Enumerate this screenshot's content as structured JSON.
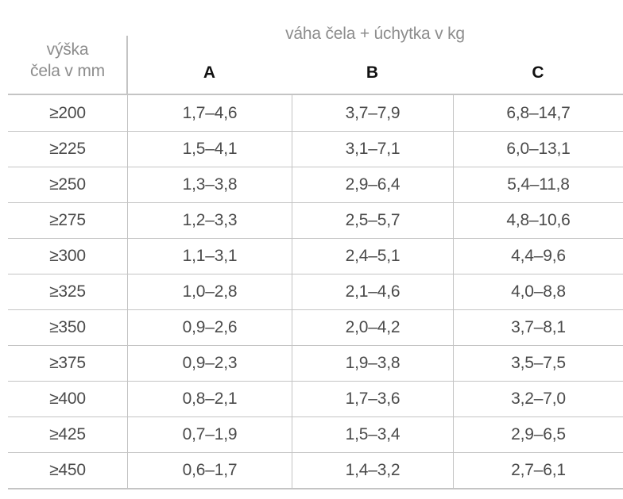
{
  "table": {
    "group_header": "váha čela + úchytka v kg",
    "corner_header": {
      "line1": "výška",
      "line2": "čela v mm"
    },
    "column_headers": [
      "A",
      "B",
      "C"
    ],
    "rows": [
      {
        "height": "≥200",
        "a": "1,7–4,6",
        "b": "3,7–7,9",
        "c": "6,8–14,7"
      },
      {
        "height": "≥225",
        "a": "1,5–4,1",
        "b": "3,1–7,1",
        "c": "6,0–13,1"
      },
      {
        "height": "≥250",
        "a": "1,3–3,8",
        "b": "2,9–6,4",
        "c": "5,4–11,8"
      },
      {
        "height": "≥275",
        "a": "1,2–3,3",
        "b": "2,5–5,7",
        "c": "4,8–10,6"
      },
      {
        "height": "≥300",
        "a": "1,1–3,1",
        "b": "2,4–5,1",
        "c": "4,4–9,6"
      },
      {
        "height": "≥325",
        "a": "1,0–2,8",
        "b": "2,1–4,6",
        "c": "4,0–8,8"
      },
      {
        "height": "≥350",
        "a": "0,9–2,6",
        "b": "2,0–4,2",
        "c": "3,7–8,1"
      },
      {
        "height": "≥375",
        "a": "0,9–2,3",
        "b": "1,9–3,8",
        "c": "3,5–7,5"
      },
      {
        "height": "≥400",
        "a": "0,8–2,1",
        "b": "1,7–3,6",
        "c": "3,2–7,0"
      },
      {
        "height": "≥425",
        "a": "0,7–1,9",
        "b": "1,5–3,4",
        "c": "2,9–6,5"
      },
      {
        "height": "≥450",
        "a": "0,6–1,7",
        "b": "1,4–3,2",
        "c": "2,7–6,1"
      }
    ],
    "colors": {
      "line": "#c4c4c4",
      "value_text": "#4b4b4b",
      "muted_header_text": "#8d8d8d",
      "column_letter_text": "#111111"
    }
  }
}
